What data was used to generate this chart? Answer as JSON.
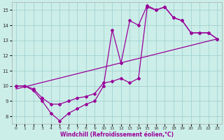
{
  "xlabel": "Windchill (Refroidissement éolien,°C)",
  "xlim": [
    -0.5,
    23.5
  ],
  "ylim": [
    7.5,
    15.5
  ],
  "yticks": [
    8,
    9,
    10,
    11,
    12,
    13,
    14,
    15
  ],
  "xticks": [
    0,
    1,
    2,
    3,
    4,
    5,
    6,
    7,
    8,
    9,
    10,
    11,
    12,
    13,
    14,
    15,
    16,
    17,
    18,
    19,
    20,
    21,
    22,
    23
  ],
  "bg_color": "#cceee8",
  "line_color": "#990099",
  "grid_color": "#99cccc",
  "line1_x": [
    0,
    23
  ],
  "line1_y": [
    9.8,
    13.1
  ],
  "line2_x": [
    0,
    1,
    2,
    3,
    4,
    5,
    6,
    7,
    8,
    9,
    10,
    11,
    12,
    13,
    14,
    15,
    16,
    17,
    18,
    19,
    20,
    21,
    22,
    23
  ],
  "line2_y": [
    10.0,
    10.0,
    9.8,
    9.2,
    8.8,
    8.8,
    9.0,
    9.2,
    9.3,
    9.5,
    10.2,
    10.3,
    10.5,
    10.2,
    10.5,
    15.2,
    15.0,
    15.2,
    14.5,
    14.3,
    13.5,
    13.5,
    13.5,
    13.1
  ],
  "line3_x": [
    0,
    1,
    2,
    3,
    4,
    5,
    6,
    7,
    8,
    9,
    10,
    11,
    12,
    13,
    14,
    15,
    16,
    17,
    18,
    19,
    20,
    21,
    22,
    23
  ],
  "line3_y": [
    10.0,
    10.0,
    9.7,
    9.0,
    8.2,
    7.7,
    8.2,
    8.5,
    8.8,
    9.0,
    10.0,
    13.7,
    11.5,
    14.3,
    14.0,
    15.3,
    15.0,
    15.2,
    14.5,
    14.3,
    13.5,
    13.5,
    13.5,
    13.1
  ],
  "marker": "D",
  "markersize": 2.0,
  "linewidth": 0.9,
  "tick_fontsize": 5,
  "xlabel_fontsize": 5.5
}
